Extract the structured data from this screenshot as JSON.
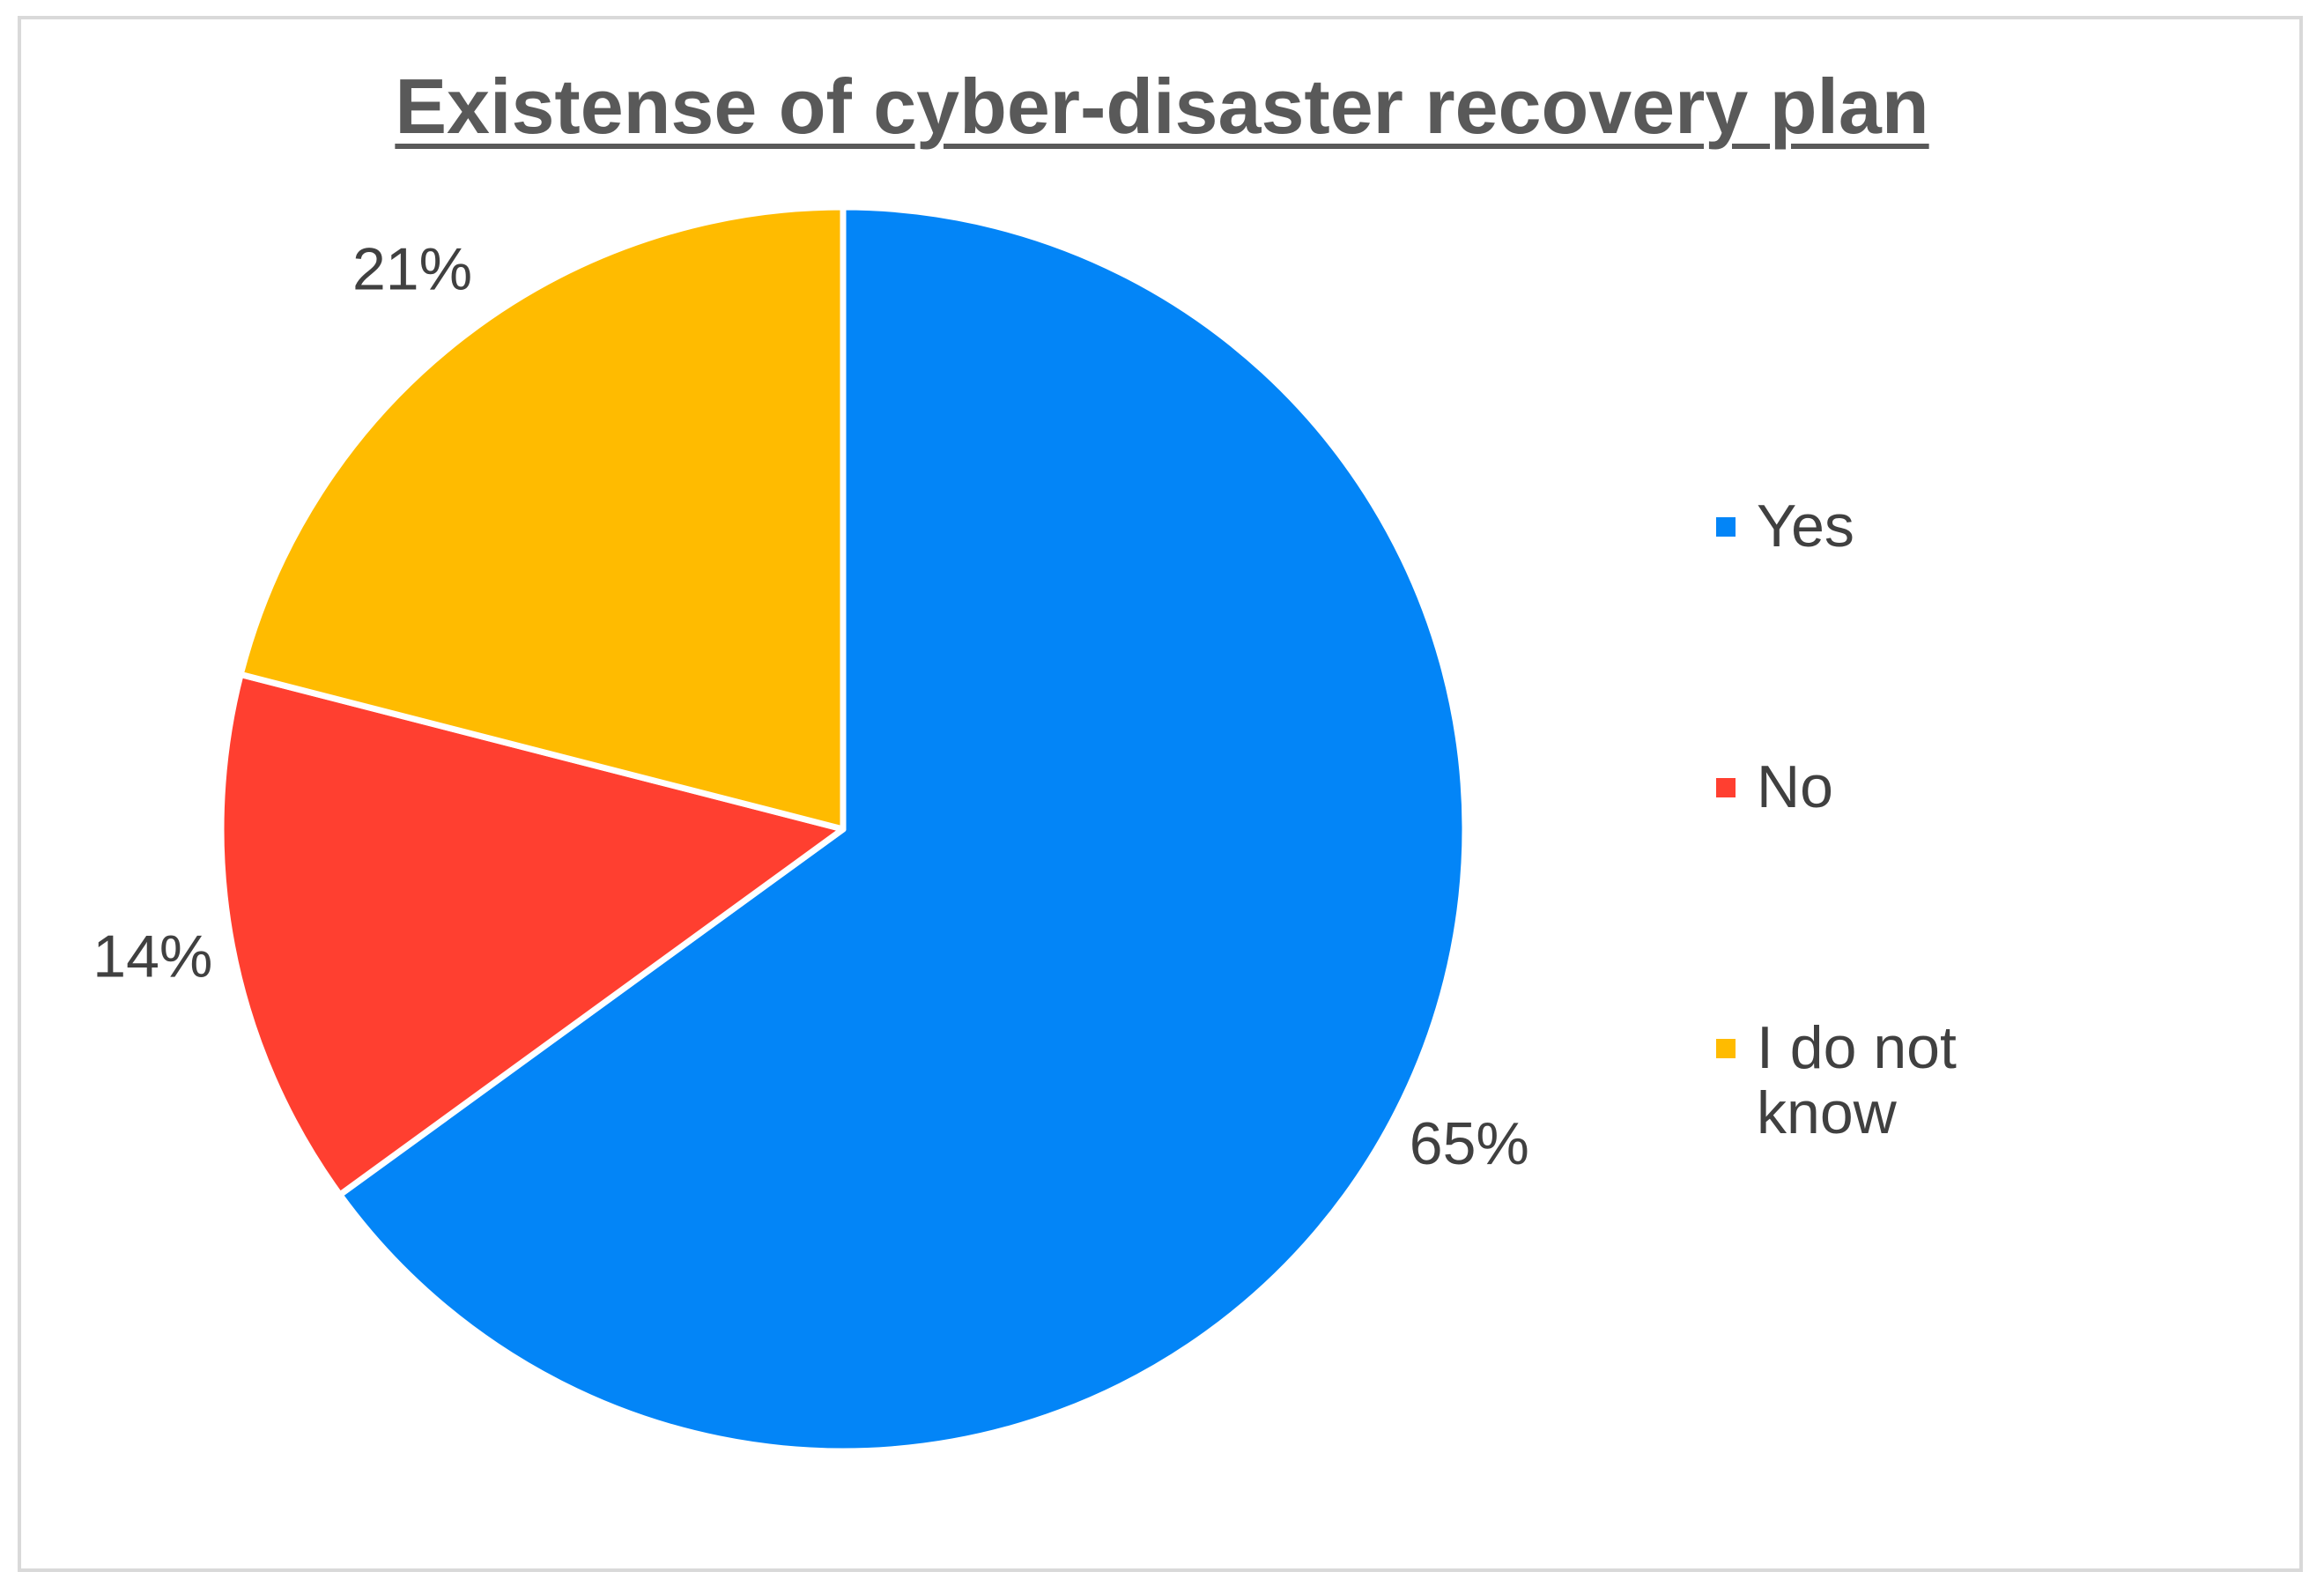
{
  "chart_data": {
    "type": "pie",
    "title": "Existense of cyber-disaster recovery plan",
    "categories": [
      "Yes",
      "No",
      "I do not know"
    ],
    "values": [
      65,
      14,
      21
    ],
    "data_labels": [
      "65%",
      "14%",
      "21%"
    ],
    "colors": [
      "#0385f7",
      "#ff3f30",
      "#ffbb00"
    ],
    "start_angle_deg": 0,
    "direction": "clockwise",
    "slice_border_color": "#ffffff",
    "legend_position": "right"
  }
}
